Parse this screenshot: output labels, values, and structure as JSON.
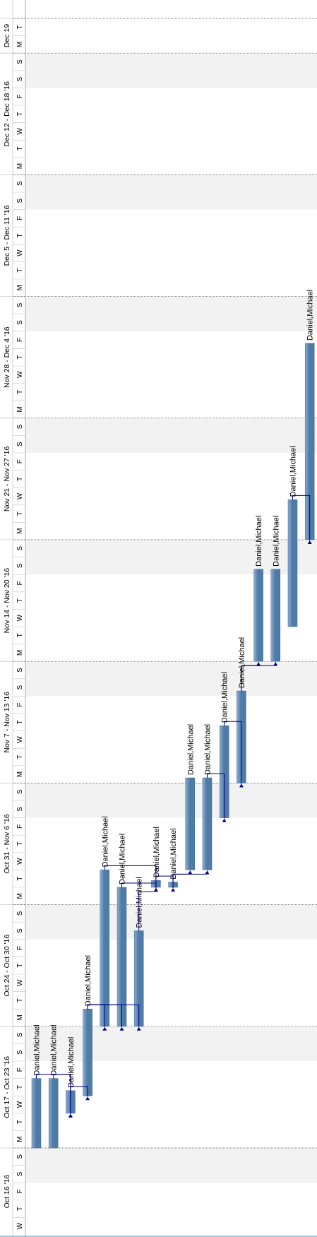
{
  "app": {
    "view": "Gantt chart (rotated)"
  },
  "weeks": [
    {
      "label": "Oct 16 '16",
      "days": [
        "W",
        "T",
        "F",
        "S",
        "S"
      ]
    },
    {
      "label": "Oct 17 - Oct 23 '16",
      "days": [
        "M",
        "T",
        "W",
        "T",
        "F",
        "S",
        "S"
      ]
    },
    {
      "label": "Oct 24 - Oct 30 '16",
      "days": [
        "M",
        "T",
        "W",
        "T",
        "F",
        "S",
        "S"
      ]
    },
    {
      "label": "Oct 31 - Nov 6 '16",
      "days": [
        "M",
        "T",
        "W",
        "T",
        "F",
        "S",
        "S"
      ]
    },
    {
      "label": "Nov 7 - Nov 13 '16",
      "days": [
        "M",
        "T",
        "W",
        "T",
        "F",
        "S",
        "S"
      ]
    },
    {
      "label": "Nov 14 - Nov 20 '16",
      "days": [
        "M",
        "T",
        "W",
        "T",
        "F",
        "S",
        "S"
      ]
    },
    {
      "label": "Nov 21 - Nov 27 '16",
      "days": [
        "M",
        "T",
        "W",
        "T",
        "F",
        "S",
        "S"
      ]
    },
    {
      "label": "Nov 28 - Dec 4 '16",
      "days": [
        "M",
        "T",
        "W",
        "T",
        "F",
        "S",
        "S"
      ]
    },
    {
      "label": "Dec 5 - Dec 11 '16",
      "days": [
        "M",
        "T",
        "W",
        "T",
        "F",
        "S",
        "S"
      ]
    },
    {
      "label": "Dec 12 - Dec 18 '16",
      "days": [
        "M",
        "T",
        "W",
        "T",
        "F",
        "S",
        "S"
      ]
    },
    {
      "label": "Dec 19",
      "days": [
        "M",
        "T"
      ]
    }
  ],
  "tasks": [
    {
      "id": 1,
      "start_day": 5,
      "duration_days": 4,
      "resources": "Daniel,Michael"
    },
    {
      "id": 2,
      "start_day": 5,
      "duration_days": 4,
      "resources": "Daniel,Michael"
    },
    {
      "id": 3,
      "start_day": 7,
      "duration_days": 1.3,
      "resources": "Daniel,Michael"
    },
    {
      "id": 4,
      "start_day": 8,
      "duration_days": 5,
      "resources": "Daniel,Michael"
    },
    {
      "id": 5,
      "start_day": 12,
      "duration_days": 9,
      "resources": "Daniel,Michael"
    },
    {
      "id": 6,
      "start_day": 12,
      "duration_days": 8,
      "resources": "Daniel,Michael"
    },
    {
      "id": 7,
      "start_day": 12,
      "duration_days": 5.5,
      "resources": "Daniel,Michael"
    },
    {
      "id": 8,
      "start_day": 20,
      "duration_days": 0.4,
      "resources": "Daniel,Michael"
    },
    {
      "id": 9,
      "start_day": 20,
      "duration_days": 0.3,
      "resources": "Daniel,Michael"
    },
    {
      "id": 10,
      "start_day": 21,
      "duration_days": 5.3,
      "resources": "Daniel,Michael"
    },
    {
      "id": 11,
      "start_day": 21,
      "duration_days": 5.3,
      "resources": "Daniel,Michael"
    },
    {
      "id": 12,
      "start_day": 24,
      "duration_days": 5.3,
      "resources": "Daniel,Michael"
    },
    {
      "id": 13,
      "start_day": 26,
      "duration_days": 5.3,
      "resources": "Daniel,Michael"
    },
    {
      "id": 14,
      "start_day": 33,
      "duration_days": 5.3,
      "resources": "Daniel,Michael"
    },
    {
      "id": 15,
      "start_day": 33,
      "duration_days": 5.3,
      "resources": "Daniel,Michael"
    },
    {
      "id": 16,
      "start_day": 35,
      "duration_days": 7.3,
      "resources": "Daniel,Michael"
    },
    {
      "id": 17,
      "start_day": 40,
      "duration_days": 11.3,
      "resources": "Daniel,Michael"
    }
  ],
  "colors": {
    "bar": "#4f7ba7",
    "bar_light": "#8fb0d2",
    "link": "#00008b",
    "weekend": "#f2f2f2",
    "grid": "#c8c8c8",
    "text": "#000000"
  }
}
